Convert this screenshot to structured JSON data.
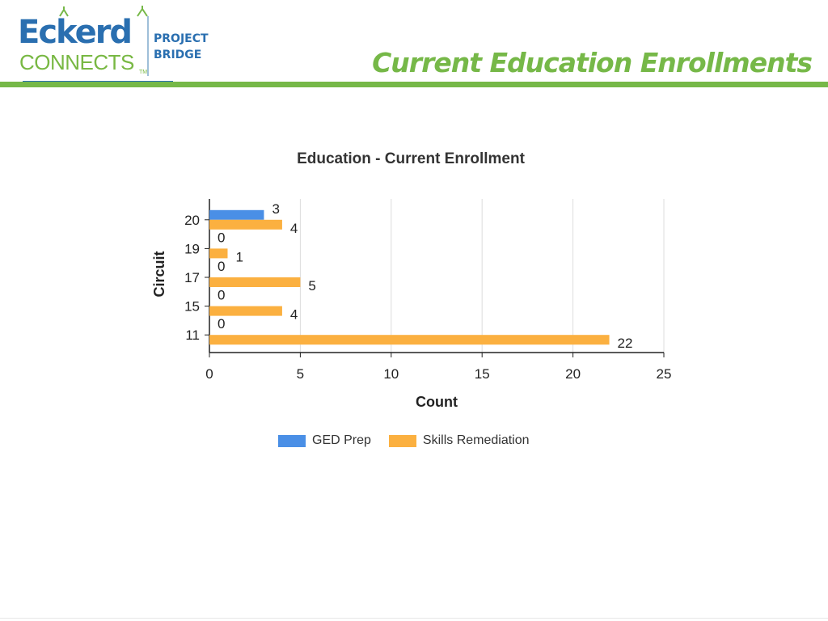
{
  "header": {
    "logo": {
      "brand_top": "Eckerd",
      "brand_bottom": "CONNECTS",
      "trademark": "TM",
      "program_line1": "PROJECT",
      "program_line2": "BRIDGE"
    },
    "title": "Current Education Enrollments"
  },
  "colors": {
    "accent_green": "#76b848",
    "brand_blue": "#2a6fb0",
    "ged_prep": "#4a8fe6",
    "skills_remediation": "#fbb040"
  },
  "chart_data": {
    "type": "bar",
    "orientation": "horizontal",
    "title": "Education - Current Enrollment",
    "xlabel": "Count",
    "ylabel": "Circuit",
    "categories": [
      "20",
      "19",
      "17",
      "15",
      "11"
    ],
    "series": [
      {
        "name": "GED Prep",
        "values": [
          3,
          0,
          0,
          0,
          0
        ],
        "color": "#4a8fe6"
      },
      {
        "name": "Skills Remediation",
        "values": [
          4,
          1,
          5,
          4,
          22
        ],
        "color": "#fbb040"
      }
    ],
    "xlim": [
      0,
      25
    ],
    "xticks": [
      "0",
      "5",
      "10",
      "15",
      "20",
      "25"
    ],
    "grid": true,
    "legend_position": "bottom"
  }
}
